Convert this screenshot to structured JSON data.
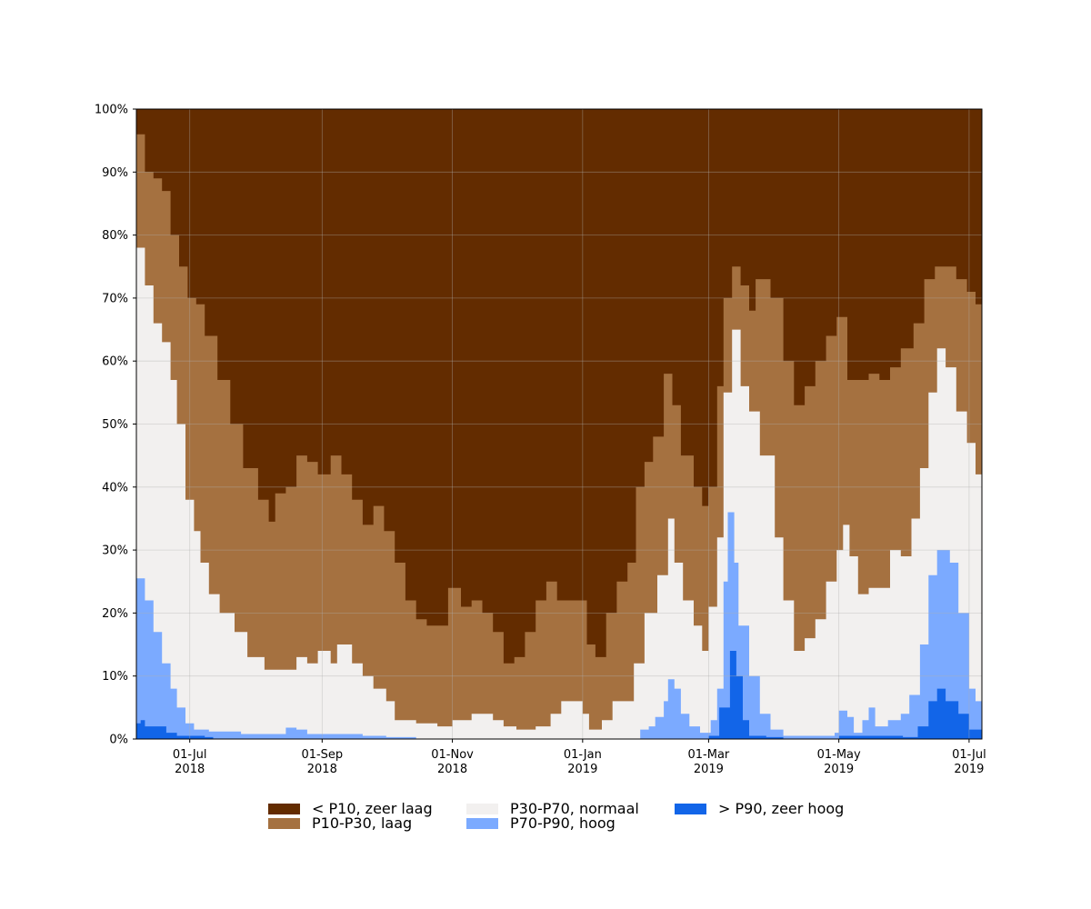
{
  "chart_data": {
    "type": "area",
    "stacked": true,
    "percent": true,
    "x_start": "2018-06-06",
    "x_end": "2019-07-07",
    "ylim": [
      0,
      100
    ],
    "y_ticks": [
      "0%",
      "10%",
      "20%",
      "30%",
      "40%",
      "50%",
      "60%",
      "70%",
      "80%",
      "90%",
      "100%"
    ],
    "x_ticks": [
      {
        "date": "2018-07-01",
        "label1": "01-Jul",
        "label2": "2018"
      },
      {
        "date": "2018-09-01",
        "label1": "01-Sep",
        "label2": "2018"
      },
      {
        "date": "2018-11-01",
        "label1": "01-Nov",
        "label2": "2018"
      },
      {
        "date": "2019-01-01",
        "label1": "01-Jan",
        "label2": "2019"
      },
      {
        "date": "2019-03-01",
        "label1": "01-Mar",
        "label2": "2019"
      },
      {
        "date": "2019-05-01",
        "label1": "01-May",
        "label2": "2019"
      },
      {
        "date": "2019-07-01",
        "label1": "01-Jul",
        "label2": "2019"
      }
    ],
    "grid": true,
    "legend_position": "bottom-center",
    "series": [
      {
        "name": "> P90, zeer hoog",
        "color": "#1265e8",
        "points": [
          [
            "2018-06-06",
            2.5
          ],
          [
            "2018-06-08",
            3
          ],
          [
            "2018-06-10",
            2
          ],
          [
            "2018-06-20",
            1
          ],
          [
            "2018-06-25",
            0.5
          ],
          [
            "2018-07-08",
            0.3
          ],
          [
            "2018-07-12",
            0
          ],
          [
            "2018-11-01",
            0
          ],
          [
            "2019-02-15",
            0
          ],
          [
            "2019-03-01",
            0.5
          ],
          [
            "2019-03-06",
            5
          ],
          [
            "2019-03-11",
            14
          ],
          [
            "2019-03-14",
            10
          ],
          [
            "2019-03-17",
            3
          ],
          [
            "2019-03-20",
            0.5
          ],
          [
            "2019-03-28",
            0.3
          ],
          [
            "2019-04-05",
            0
          ],
          [
            "2019-05-01",
            0.5
          ],
          [
            "2019-05-10",
            0.5
          ],
          [
            "2019-05-31",
            0.3
          ],
          [
            "2019-06-07",
            2
          ],
          [
            "2019-06-12",
            6
          ],
          [
            "2019-06-16",
            8
          ],
          [
            "2019-06-20",
            6
          ],
          [
            "2019-06-26",
            4
          ],
          [
            "2019-07-01",
            1.5
          ],
          [
            "2019-07-07",
            1
          ]
        ]
      },
      {
        "name": "P70-P90, hoog",
        "color": "#7baaff",
        "points": [
          [
            "2018-06-06",
            25.5
          ],
          [
            "2018-06-10",
            22
          ],
          [
            "2018-06-14",
            17
          ],
          [
            "2018-06-18",
            12
          ],
          [
            "2018-06-22",
            8
          ],
          [
            "2018-06-25",
            5
          ],
          [
            "2018-06-29",
            2.5
          ],
          [
            "2018-07-03",
            1.5
          ],
          [
            "2018-07-10",
            1.2
          ],
          [
            "2018-07-20",
            1.2
          ],
          [
            "2018-07-25",
            0.8
          ],
          [
            "2018-08-10",
            0.8
          ],
          [
            "2018-08-15",
            1.8
          ],
          [
            "2018-08-20",
            1.5
          ],
          [
            "2018-08-25",
            0.8
          ],
          [
            "2018-09-10",
            0.8
          ],
          [
            "2018-09-20",
            0.5
          ],
          [
            "2018-10-01",
            0.3
          ],
          [
            "2018-10-15",
            0
          ],
          [
            "2019-01-01",
            0
          ],
          [
            "2019-01-20",
            0
          ],
          [
            "2019-01-28",
            1.5
          ],
          [
            "2019-02-01",
            2
          ],
          [
            "2019-02-04",
            3.5
          ],
          [
            "2019-02-08",
            6
          ],
          [
            "2019-02-10",
            9.5
          ],
          [
            "2019-02-13",
            8
          ],
          [
            "2019-02-16",
            4
          ],
          [
            "2019-02-20",
            2
          ],
          [
            "2019-02-25",
            1
          ],
          [
            "2019-03-02",
            3
          ],
          [
            "2019-03-05",
            8
          ],
          [
            "2019-03-08",
            25
          ],
          [
            "2019-03-10",
            36
          ],
          [
            "2019-03-13",
            28
          ],
          [
            "2019-03-15",
            18
          ],
          [
            "2019-03-20",
            10
          ],
          [
            "2019-03-25",
            4
          ],
          [
            "2019-03-30",
            1.5
          ],
          [
            "2019-04-05",
            0.5
          ],
          [
            "2019-04-20",
            0.5
          ],
          [
            "2019-04-29",
            1
          ],
          [
            "2019-05-01",
            4.5
          ],
          [
            "2019-05-05",
            3.5
          ],
          [
            "2019-05-08",
            1
          ],
          [
            "2019-05-12",
            3
          ],
          [
            "2019-05-15",
            5
          ],
          [
            "2019-05-18",
            2
          ],
          [
            "2019-05-24",
            3
          ],
          [
            "2019-05-30",
            4
          ],
          [
            "2019-06-03",
            7
          ],
          [
            "2019-06-08",
            15
          ],
          [
            "2019-06-12",
            26
          ],
          [
            "2019-06-16",
            30
          ],
          [
            "2019-06-22",
            28
          ],
          [
            "2019-06-26",
            20
          ],
          [
            "2019-07-01",
            8
          ],
          [
            "2019-07-04",
            6
          ],
          [
            "2019-07-07",
            5
          ]
        ]
      },
      {
        "name": "P30-P70, normaal",
        "color": "#f2f0ef",
        "points": [
          [
            "2018-06-06",
            78
          ],
          [
            "2018-06-10",
            72
          ],
          [
            "2018-06-14",
            66
          ],
          [
            "2018-06-18",
            63
          ],
          [
            "2018-06-22",
            57
          ],
          [
            "2018-06-25",
            50
          ],
          [
            "2018-06-29",
            38
          ],
          [
            "2018-07-03",
            33
          ],
          [
            "2018-07-06",
            28
          ],
          [
            "2018-07-10",
            23
          ],
          [
            "2018-07-15",
            20
          ],
          [
            "2018-07-22",
            17
          ],
          [
            "2018-07-28",
            13
          ],
          [
            "2018-08-05",
            11
          ],
          [
            "2018-08-12",
            11
          ],
          [
            "2018-08-20",
            13
          ],
          [
            "2018-08-25",
            12
          ],
          [
            "2018-08-30",
            14
          ],
          [
            "2018-09-05",
            12
          ],
          [
            "2018-09-08",
            15
          ],
          [
            "2018-09-15",
            12
          ],
          [
            "2018-09-20",
            10
          ],
          [
            "2018-09-25",
            8
          ],
          [
            "2018-10-01",
            6
          ],
          [
            "2018-10-05",
            3
          ],
          [
            "2018-10-15",
            2.5
          ],
          [
            "2018-10-25",
            2
          ],
          [
            "2018-11-01",
            3
          ],
          [
            "2018-11-10",
            4
          ],
          [
            "2018-11-20",
            3
          ],
          [
            "2018-11-25",
            2
          ],
          [
            "2018-12-01",
            1.5
          ],
          [
            "2018-12-10",
            2
          ],
          [
            "2018-12-17",
            4
          ],
          [
            "2018-12-22",
            6
          ],
          [
            "2018-12-27",
            6
          ],
          [
            "2019-01-01",
            4
          ],
          [
            "2019-01-04",
            1.5
          ],
          [
            "2019-01-10",
            3
          ],
          [
            "2019-01-15",
            6
          ],
          [
            "2019-01-22",
            6
          ],
          [
            "2019-01-25",
            12
          ],
          [
            "2019-01-30",
            20
          ],
          [
            "2019-02-05",
            26
          ],
          [
            "2019-02-10",
            35
          ],
          [
            "2019-02-13",
            28
          ],
          [
            "2019-02-17",
            22
          ],
          [
            "2019-02-22",
            18
          ],
          [
            "2019-02-26",
            14
          ],
          [
            "2019-03-01",
            21
          ],
          [
            "2019-03-05",
            32
          ],
          [
            "2019-03-08",
            55
          ],
          [
            "2019-03-12",
            65
          ],
          [
            "2019-03-16",
            56
          ],
          [
            "2019-03-20",
            52
          ],
          [
            "2019-03-25",
            45
          ],
          [
            "2019-04-01",
            32
          ],
          [
            "2019-04-05",
            22
          ],
          [
            "2019-04-10",
            14
          ],
          [
            "2019-04-15",
            16
          ],
          [
            "2019-04-20",
            19
          ],
          [
            "2019-04-25",
            25
          ],
          [
            "2019-04-30",
            30
          ],
          [
            "2019-05-03",
            34
          ],
          [
            "2019-05-06",
            29
          ],
          [
            "2019-05-10",
            23
          ],
          [
            "2019-05-15",
            24
          ],
          [
            "2019-05-20",
            24
          ],
          [
            "2019-05-25",
            30
          ],
          [
            "2019-05-30",
            29
          ],
          [
            "2019-06-04",
            35
          ],
          [
            "2019-06-08",
            43
          ],
          [
            "2019-06-12",
            55
          ],
          [
            "2019-06-16",
            62
          ],
          [
            "2019-06-20",
            59
          ],
          [
            "2019-06-25",
            52
          ],
          [
            "2019-06-30",
            47
          ],
          [
            "2019-07-04",
            42
          ],
          [
            "2019-07-07",
            41
          ]
        ]
      },
      {
        "name": "P10-P30, laag",
        "color": "#a57140",
        "points": [
          [
            "2018-06-06",
            96
          ],
          [
            "2018-06-10",
            90
          ],
          [
            "2018-06-14",
            89
          ],
          [
            "2018-06-18",
            87
          ],
          [
            "2018-06-22",
            80
          ],
          [
            "2018-06-26",
            75
          ],
          [
            "2018-06-30",
            70
          ],
          [
            "2018-07-04",
            69
          ],
          [
            "2018-07-08",
            64
          ],
          [
            "2018-07-14",
            57
          ],
          [
            "2018-07-20",
            50
          ],
          [
            "2018-07-26",
            43
          ],
          [
            "2018-08-02",
            38
          ],
          [
            "2018-08-07",
            34.5
          ],
          [
            "2018-08-10",
            39
          ],
          [
            "2018-08-15",
            40
          ],
          [
            "2018-08-20",
            45
          ],
          [
            "2018-08-25",
            44
          ],
          [
            "2018-08-30",
            42
          ],
          [
            "2018-09-05",
            45
          ],
          [
            "2018-09-10",
            42
          ],
          [
            "2018-09-15",
            38
          ],
          [
            "2018-09-20",
            34
          ],
          [
            "2018-09-25",
            37
          ],
          [
            "2018-09-30",
            33
          ],
          [
            "2018-10-05",
            28
          ],
          [
            "2018-10-10",
            22
          ],
          [
            "2018-10-15",
            19
          ],
          [
            "2018-10-20",
            18
          ],
          [
            "2018-10-25",
            18
          ],
          [
            "2018-10-30",
            24
          ],
          [
            "2018-11-05",
            21
          ],
          [
            "2018-11-10",
            22
          ],
          [
            "2018-11-15",
            20
          ],
          [
            "2018-11-20",
            17
          ],
          [
            "2018-11-25",
            12
          ],
          [
            "2018-11-30",
            13
          ],
          [
            "2018-12-05",
            17
          ],
          [
            "2018-12-10",
            22
          ],
          [
            "2018-12-15",
            25
          ],
          [
            "2018-12-20",
            22
          ],
          [
            "2018-12-25",
            22
          ],
          [
            "2018-12-30",
            22
          ],
          [
            "2019-01-03",
            15
          ],
          [
            "2019-01-07",
            13
          ],
          [
            "2019-01-12",
            20
          ],
          [
            "2019-01-17",
            25
          ],
          [
            "2019-01-22",
            28
          ],
          [
            "2019-01-26",
            40
          ],
          [
            "2019-01-30",
            44
          ],
          [
            "2019-02-03",
            48
          ],
          [
            "2019-02-08",
            58
          ],
          [
            "2019-02-12",
            53
          ],
          [
            "2019-02-16",
            45
          ],
          [
            "2019-02-22",
            40
          ],
          [
            "2019-02-26",
            37
          ],
          [
            "2019-03-01",
            40
          ],
          [
            "2019-03-05",
            56
          ],
          [
            "2019-03-08",
            70
          ],
          [
            "2019-03-12",
            75
          ],
          [
            "2019-03-16",
            72
          ],
          [
            "2019-03-20",
            68
          ],
          [
            "2019-03-23",
            73
          ],
          [
            "2019-03-26",
            73
          ],
          [
            "2019-03-30",
            70
          ],
          [
            "2019-04-05",
            60
          ],
          [
            "2019-04-10",
            53
          ],
          [
            "2019-04-15",
            56
          ],
          [
            "2019-04-20",
            60
          ],
          [
            "2019-04-25",
            64
          ],
          [
            "2019-04-30",
            67
          ],
          [
            "2019-05-05",
            57
          ],
          [
            "2019-05-10",
            57
          ],
          [
            "2019-05-15",
            58
          ],
          [
            "2019-05-20",
            57
          ],
          [
            "2019-05-25",
            59
          ],
          [
            "2019-05-30",
            62
          ],
          [
            "2019-06-05",
            66
          ],
          [
            "2019-06-10",
            73
          ],
          [
            "2019-06-15",
            75
          ],
          [
            "2019-06-20",
            75
          ],
          [
            "2019-06-25",
            73
          ],
          [
            "2019-06-30",
            71
          ],
          [
            "2019-07-04",
            69
          ],
          [
            "2019-07-07",
            65
          ]
        ]
      }
    ]
  }
}
